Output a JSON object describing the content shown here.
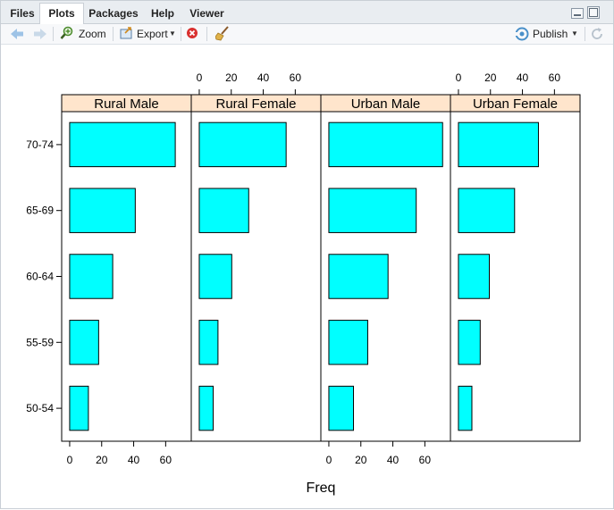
{
  "tabs": [
    {
      "label": "Files",
      "active": false
    },
    {
      "label": "Plots",
      "active": true
    },
    {
      "label": "Packages",
      "active": false
    },
    {
      "label": "Help",
      "active": false
    },
    {
      "label": "Viewer",
      "active": false
    }
  ],
  "toolbar": {
    "zoom_label": "Zoom",
    "export_label": "Export",
    "publish_label": "Publish",
    "icons": [
      "back-arrow-icon",
      "forward-arrow-icon",
      "zoom-icon",
      "export-icon",
      "remove-plot-icon",
      "broom-icon",
      "publish-icon",
      "refresh-icon"
    ]
  },
  "colors": {
    "bar_fill": "#00FFFF",
    "strip_bg": "#FFE5CC",
    "tab_bg": "#E9EDF1"
  },
  "chart_data": {
    "type": "bar",
    "orientation": "horizontal",
    "categories": [
      "50-54",
      "55-59",
      "60-64",
      "65-69",
      "70-74"
    ],
    "xlabel": "Freq",
    "ylabel": "",
    "xlim": [
      -5,
      76
    ],
    "x_ticks": [
      0,
      20,
      40,
      60
    ],
    "x_tick_labels": [
      "0",
      "20",
      "40",
      "60"
    ],
    "panels": [
      {
        "name": "Rural Male",
        "values": [
          11.7,
          18.1,
          26.9,
          41.0,
          66.0
        ]
      },
      {
        "name": "Rural Female",
        "values": [
          8.7,
          11.7,
          20.3,
          30.9,
          54.3
        ]
      },
      {
        "name": "Urban Male",
        "values": [
          15.4,
          24.3,
          37.0,
          54.6,
          71.1
        ]
      },
      {
        "name": "Urban Female",
        "values": [
          8.4,
          13.6,
          19.3,
          35.1,
          50.0
        ]
      }
    ]
  }
}
